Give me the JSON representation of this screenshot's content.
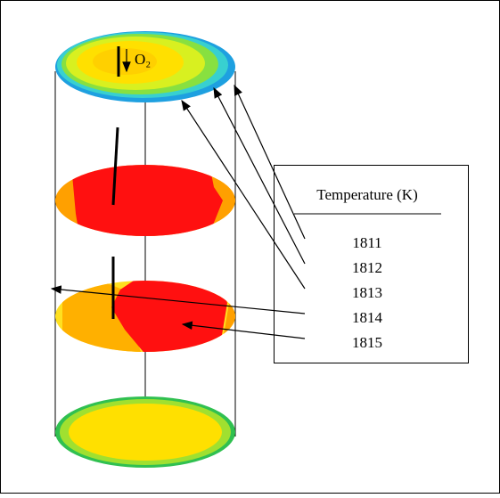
{
  "oxygen_label": "O₂",
  "legend": {
    "title": "Temperature (K)",
    "items": [
      "1811",
      "1812",
      "1813",
      "1814",
      "1815"
    ]
  }
}
